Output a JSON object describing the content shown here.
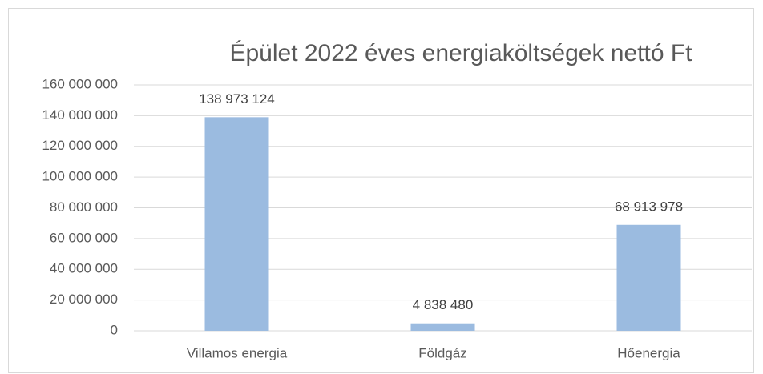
{
  "chart_data": {
    "type": "bar",
    "title": "Épület 2022 éves energiaköltségek nettó Ft",
    "categories": [
      "Villamos energia",
      "Földgáz",
      "Hőenergia"
    ],
    "values": [
      138973124,
      4838480,
      68913978
    ],
    "value_labels": [
      "138 973 124",
      "4 838 480",
      "68 913 978"
    ],
    "color": "#9bbbe0",
    "ylim": [
      0,
      160000000
    ],
    "yticks": [
      0,
      {
        "value": 20000000,
        "label": "20 000 000"
      },
      {
        "value": 40000000,
        "label": "40 000 000"
      },
      {
        "value": 60000000,
        "label": "60 000 000"
      },
      {
        "value": 80000000,
        "label": "80 000 000"
      },
      {
        "value": 100000000,
        "label": "100 000 000"
      },
      {
        "value": 120000000,
        "label": "120 000 000"
      },
      {
        "value": 140000000,
        "label": "140 000 000"
      },
      {
        "value": 160000000,
        "label": "160 000 000"
      }
    ],
    "grid": true
  }
}
